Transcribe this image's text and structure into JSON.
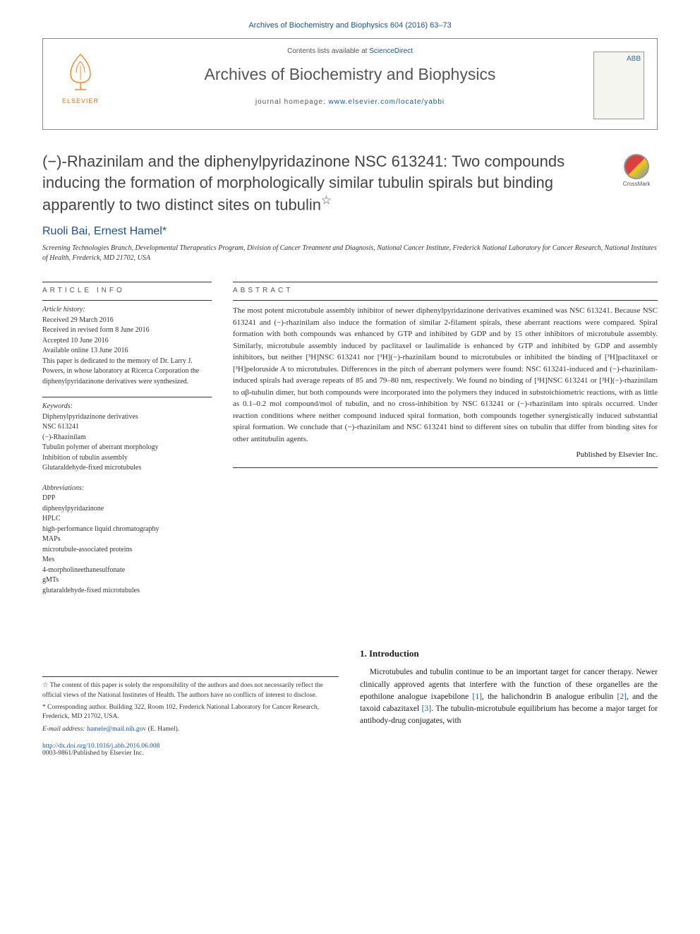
{
  "header": {
    "citation": "Archives of Biochemistry and Biophysics 604 (2016) 63–73",
    "contents_prefix": "Contents lists available at ",
    "contents_link": "ScienceDirect",
    "journal_title": "Archives of Biochemistry and Biophysics",
    "homepage_prefix": "journal homepage: ",
    "homepage_link": "www.elsevier.com/locate/yabbi",
    "elsevier_label": "ELSEVIER",
    "cover_label": "ABB"
  },
  "crossmark": {
    "label": "CrossMark"
  },
  "title": "(−)-Rhazinilam and the diphenylpyridazinone NSC 613241: Two compounds inducing the formation of morphologically similar tubulin spirals but binding apparently to two distinct sites on tubulin",
  "title_star": "☆",
  "authors": "Ruoli Bai, Ernest Hamel",
  "author_mark": "*",
  "affiliation": "Screening Technologies Branch, Developmental Therapeutics Program, Division of Cancer Treatment and Diagnosis, National Cancer Institute, Frederick National Laboratory for Cancer Research, National Institutes of Health, Frederick, MD 21702, USA",
  "article_info": {
    "heading": "ARTICLE INFO",
    "history_label": "Article history:",
    "received": "Received 29 March 2016",
    "revised": "Received in revised form 8 June 2016",
    "accepted": "Accepted 10 June 2016",
    "online": "Available online 13 June 2016",
    "dedication": "This paper is dedicated to the memory of Dr. Larry J. Powers, in whose laboratory at Ricerca Corporation the diphenylpyridazinone derivatives were synthesized.",
    "keywords_label": "Keywords:",
    "keywords": [
      "Diphenylpyridazinone derivatives",
      "NSC 613241",
      "(−)-Rhazinilam",
      "Tubulin polymer of aberrant morphology",
      "Inhibition of tubulin assembly",
      "Glutaraldehyde-fixed microtubules"
    ],
    "abbrev_label": "Abbreviations:",
    "abbreviations": [
      {
        "abbr": "DPP",
        "def": "diphenylpyridazinone"
      },
      {
        "abbr": "HPLC",
        "def": "high-performance liquid chromatography"
      },
      {
        "abbr": "MAPs",
        "def": "microtubule-associated proteins"
      },
      {
        "abbr": "Mes",
        "def": "4-morpholineethanesulfonate"
      },
      {
        "abbr": "gMTs",
        "def": "glutaraldehyde-fixed microtubules"
      }
    ]
  },
  "abstract": {
    "heading": "ABSTRACT",
    "text": "The most potent microtubule assembly inhibitor of newer diphenylpyridazinone derivatives examined was NSC 613241. Because NSC 613241 and (−)-rhazinilam also induce the formation of similar 2-filament spirals, these aberrant reactions were compared. Spiral formation with both compounds was enhanced by GTP and inhibited by GDP and by 15 other inhibitors of microtubule assembly. Similarly, microtubule assembly induced by paclitaxel or laulimalide is enhanced by GTP and inhibited by GDP and assembly inhibitors, but neither [³H]NSC 613241 nor [³H](−)-rhazinilam bound to microtubules or inhibited the binding of [³H]paclitaxel or [³H]peloruside A to microtubules. Differences in the pitch of aberrant polymers were found: NSC 613241-induced and (−)-rhazinilam-induced spirals had average repeats of 85 and 79–80 nm, respectively. We found no binding of [³H]NSC 613241 or [³H](−)-rhazinilam to αβ-tubulin dimer, but both compounds were incorporated into the polymers they induced in substoichiometric reactions, with as little as 0.1–0.2 mol compound/mol of tubulin, and no cross-inhibition by NSC 613241 or (−)-rhazinilam into spirals occurred. Under reaction conditions where neither compound induced spiral formation, both compounds together synergistically induced substantial spiral formation. We conclude that (−)-rhazinilam and NSC 613241 bind to different sites on tubulin that differ from binding sites for other antitubulin agents.",
    "publisher": "Published by Elsevier Inc."
  },
  "introduction": {
    "heading": "1.  Introduction",
    "p1_a": "Microtubules and tubulin continue to be an important target for cancer therapy. Newer clinically approved agents that interfere with the function of these organelles are the epothilone analogue ixapebilone ",
    "ref1": "[1]",
    "p1_b": ", the halichondrin B analogue eribulin ",
    "ref2": "[2]",
    "p1_c": ", and the taxoid cabazitaxel ",
    "ref3": "[3]",
    "p1_d": ". The tubulin-microtubule equilibrium has become a major target for antibody-drug conjugates, with"
  },
  "footnotes": {
    "star": "☆ The content of this paper is solely the responsibility of the authors and does not necessarily reflect the official views of the National Institutes of Health. The authors have no conflicts of interest to disclose.",
    "corresponding": "* Corresponding author. Building 322, Room 102, Frederick National Laboratory for Cancer Research, Frederick, MD 21702, USA.",
    "email_label": "E-mail address: ",
    "email": "hamele@mail.nih.gov",
    "email_suffix": " (E. Hamel)."
  },
  "bottom": {
    "doi": "http://dx.doi.org/10.1016/j.abb.2016.06.008",
    "issn": "0003-9861/Published by Elsevier Inc."
  },
  "colors": {
    "link": "#1a5490",
    "elsevier": "#ff6b00",
    "text": "#333333",
    "heading": "#444444"
  }
}
